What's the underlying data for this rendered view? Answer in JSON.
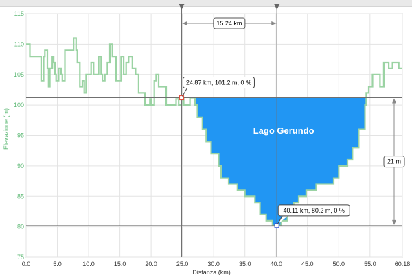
{
  "chart_data": {
    "type": "area",
    "title": "",
    "xlabel": "Distanza (km)",
    "ylabel": "Elevazione (m)",
    "xlim": [
      0,
      60.18
    ],
    "ylim": [
      75,
      115
    ],
    "x_ticks": [
      "0.0",
      "5.0",
      "10.0",
      "15.0",
      "20.0",
      "25.0",
      "30.0",
      "35.0",
      "40.0",
      "45.0",
      "50.0",
      "55.0",
      "60.18"
    ],
    "y_ticks": [
      "75",
      "80",
      "85",
      "90",
      "95",
      "100",
      "105",
      "110",
      "115"
    ],
    "x_tick_values": [
      0,
      5,
      10,
      15,
      20,
      25,
      30,
      35,
      40,
      45,
      50,
      55,
      60.18
    ],
    "y_tick_values": [
      75,
      80,
      85,
      90,
      95,
      100,
      105,
      110,
      115
    ],
    "grid": true,
    "series": [
      {
        "color": "#9bd3a3",
        "profile": [
          [
            0,
            110
          ],
          [
            0.6,
            110
          ],
          [
            0.6,
            108
          ],
          [
            2.4,
            108
          ],
          [
            2.4,
            104
          ],
          [
            2.8,
            104
          ],
          [
            2.8,
            108
          ],
          [
            3,
            108
          ],
          [
            3,
            109
          ],
          [
            3.4,
            109
          ],
          [
            3.4,
            106
          ],
          [
            3.6,
            106
          ],
          [
            3.6,
            103
          ],
          [
            3.8,
            103
          ],
          [
            3.8,
            106
          ],
          [
            4.2,
            106
          ],
          [
            4.2,
            108
          ],
          [
            4.4,
            108
          ],
          [
            4.4,
            107
          ],
          [
            4.6,
            107
          ],
          [
            4.6,
            105
          ],
          [
            4.8,
            105
          ],
          [
            4.8,
            104
          ],
          [
            5.2,
            104
          ],
          [
            5.2,
            106
          ],
          [
            5.6,
            106
          ],
          [
            5.6,
            105
          ],
          [
            5.8,
            105
          ],
          [
            5.8,
            104
          ],
          [
            6.2,
            104
          ],
          [
            6.2,
            109
          ],
          [
            7.6,
            109
          ],
          [
            7.6,
            111
          ],
          [
            8,
            111
          ],
          [
            8,
            109
          ],
          [
            8.2,
            109
          ],
          [
            8.2,
            107
          ],
          [
            8.6,
            107
          ],
          [
            8.6,
            103
          ],
          [
            9,
            103
          ],
          [
            9,
            104
          ],
          [
            9.3,
            104
          ],
          [
            9.3,
            102
          ],
          [
            9.6,
            102
          ],
          [
            9.6,
            105
          ],
          [
            10.4,
            105
          ],
          [
            10.4,
            107
          ],
          [
            10.8,
            107
          ],
          [
            10.8,
            105
          ],
          [
            11.6,
            105
          ],
          [
            11.6,
            108
          ],
          [
            12,
            108
          ],
          [
            12,
            105
          ],
          [
            12.2,
            105
          ],
          [
            12.2,
            104
          ],
          [
            12.6,
            104
          ],
          [
            12.6,
            105
          ],
          [
            13,
            105
          ],
          [
            13,
            107
          ],
          [
            13.4,
            107
          ],
          [
            13.4,
            110
          ],
          [
            13.8,
            110
          ],
          [
            13.8,
            108
          ],
          [
            14.4,
            108
          ],
          [
            14.4,
            104
          ],
          [
            15.2,
            104
          ],
          [
            15.2,
            108
          ],
          [
            15.6,
            108
          ],
          [
            15.6,
            105
          ],
          [
            16,
            105
          ],
          [
            16,
            107
          ],
          [
            16.4,
            107
          ],
          [
            16.4,
            108
          ],
          [
            17,
            108
          ],
          [
            17,
            106
          ],
          [
            17.5,
            106
          ],
          [
            17.5,
            105
          ],
          [
            18,
            105
          ],
          [
            18,
            102
          ],
          [
            19,
            102
          ],
          [
            19,
            100
          ],
          [
            19.8,
            100
          ],
          [
            19.8,
            101
          ],
          [
            20,
            101
          ],
          [
            20,
            100
          ],
          [
            20.5,
            100
          ],
          [
            20.5,
            104
          ],
          [
            20.8,
            104
          ],
          [
            20.8,
            105
          ],
          [
            21.2,
            105
          ],
          [
            21.2,
            103
          ],
          [
            22.4,
            103
          ],
          [
            22.4,
            100
          ],
          [
            24,
            100
          ],
          [
            24,
            101
          ],
          [
            24.4,
            101
          ],
          [
            24.4,
            100
          ],
          [
            24.87,
            100
          ],
          [
            24.87,
            101.2
          ]
        ]
      },
      {
        "color": "#9bd3a3",
        "profile": [
          [
            54.4,
            101.2
          ],
          [
            54.4,
            102
          ],
          [
            54.8,
            102
          ],
          [
            54.8,
            103
          ],
          [
            55.4,
            103
          ],
          [
            55.4,
            105
          ],
          [
            56.6,
            105
          ],
          [
            56.6,
            103
          ],
          [
            57.2,
            103
          ],
          [
            57.2,
            107
          ],
          [
            58,
            107
          ],
          [
            58,
            106
          ],
          [
            58.6,
            106
          ],
          [
            58.6,
            107
          ],
          [
            59.6,
            107
          ],
          [
            59.6,
            106
          ],
          [
            60.18,
            106
          ]
        ]
      },
      {
        "name": "Lago Gerundo",
        "color": "#2196f3",
        "right_edge": [
          [
            54.4,
            101.2
          ],
          [
            54.4,
            100
          ],
          [
            54.2,
            100
          ],
          [
            54.2,
            96
          ],
          [
            53.2,
            96
          ],
          [
            53.2,
            93
          ],
          [
            52.2,
            93
          ],
          [
            52.2,
            91
          ],
          [
            51.4,
            91
          ],
          [
            51.4,
            90
          ],
          [
            50,
            90
          ],
          [
            50,
            88
          ],
          [
            49.2,
            88
          ],
          [
            49.2,
            87
          ],
          [
            46.4,
            87
          ],
          [
            46.4,
            86
          ],
          [
            44.8,
            86
          ],
          [
            44.8,
            85
          ],
          [
            43.6,
            85
          ],
          [
            43.6,
            84
          ],
          [
            42.8,
            84
          ],
          [
            42.8,
            82
          ],
          [
            41.8,
            82
          ],
          [
            41.8,
            81
          ],
          [
            40.8,
            81
          ],
          [
            40.8,
            80.2
          ],
          [
            40.11,
            80.2
          ]
        ],
        "left_edge": [
          [
            27,
            101.2
          ],
          [
            27,
            100
          ],
          [
            27.4,
            100
          ],
          [
            27.4,
            98
          ],
          [
            28.2,
            98
          ],
          [
            28.2,
            96
          ],
          [
            28.8,
            96
          ],
          [
            28.8,
            94
          ],
          [
            29.6,
            94
          ],
          [
            29.6,
            92
          ],
          [
            30.8,
            92
          ],
          [
            30.8,
            90
          ],
          [
            31.2,
            90
          ],
          [
            31.2,
            88
          ],
          [
            32.4,
            88
          ],
          [
            32.4,
            87
          ],
          [
            33.8,
            87
          ],
          [
            33.8,
            86
          ],
          [
            35,
            86
          ],
          [
            35,
            85
          ],
          [
            36.6,
            85
          ],
          [
            36.6,
            84
          ],
          [
            37.4,
            84
          ],
          [
            37.4,
            82
          ],
          [
            38.4,
            82
          ],
          [
            38.4,
            81
          ],
          [
            39.4,
            81
          ],
          [
            39.4,
            80.2
          ],
          [
            40.11,
            80.2
          ]
        ],
        "outline_left": [
          [
            24.87,
            101.2
          ],
          [
            25.2,
            101.2
          ],
          [
            25.2,
            100
          ],
          [
            26.2,
            100
          ],
          [
            26.2,
            101.2
          ],
          [
            27,
            101.2
          ]
        ]
      }
    ],
    "markers": [
      {
        "x": 24.87,
        "y": 101.2,
        "label": "24.87 km, 101.2 m, 0 %",
        "color": "#e05040"
      },
      {
        "x": 40.11,
        "y": 80.2,
        "label": "40.11 km, 80.2 m, 0 %",
        "color": "#3050d0"
      }
    ],
    "lake_label": "Lago Gerundo",
    "horizontal_lines": [
      101.2,
      80.2
    ],
    "distance_span": {
      "from": 24.87,
      "to": 40.11,
      "label": "15.24 km"
    },
    "height_span": {
      "label": "21 m"
    }
  }
}
